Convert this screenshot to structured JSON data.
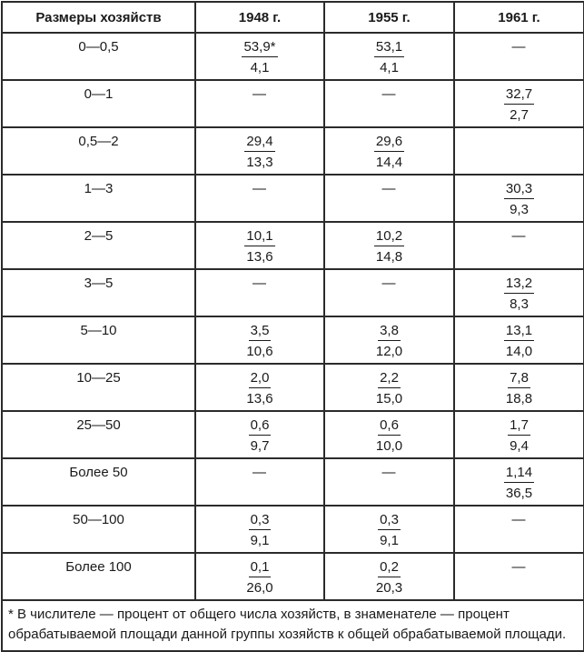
{
  "table": {
    "headers": [
      "Размеры хозяйств",
      "1948 г.",
      "1955 г.",
      "1961 г."
    ],
    "rows": [
      {
        "label": "0—0,5",
        "cells": [
          {
            "num": "53,9*",
            "den": "4,1"
          },
          {
            "num": "53,1",
            "den": "4,1"
          },
          {
            "dash": "—"
          }
        ]
      },
      {
        "label": "0—1",
        "cells": [
          {
            "dash": "—"
          },
          {
            "dash": "—"
          },
          {
            "num": "32,7",
            "den": "2,7"
          }
        ]
      },
      {
        "label": "0,5—2",
        "cells": [
          {
            "num": "29,4",
            "den": "13,3"
          },
          {
            "num": "29,6",
            "den": "14,4"
          },
          {}
        ]
      },
      {
        "label": "1—3",
        "cells": [
          {
            "dash": "—"
          },
          {
            "dash": "—"
          },
          {
            "num": "30,3",
            "den": "9,3"
          }
        ]
      },
      {
        "label": "2—5",
        "cells": [
          {
            "num": "10,1",
            "den": "13,6"
          },
          {
            "num": "10,2",
            "den": "14,8"
          },
          {
            "dash": "—"
          }
        ]
      },
      {
        "label": "3—5",
        "cells": [
          {
            "dash": "—"
          },
          {
            "dash": "—"
          },
          {
            "num": "13,2",
            "den": "8,3"
          }
        ]
      },
      {
        "label": "5—10",
        "cells": [
          {
            "num": "3,5",
            "den": "10,6"
          },
          {
            "num": "3,8",
            "den": "12,0"
          },
          {
            "num": "13,1",
            "den": "14,0"
          }
        ]
      },
      {
        "label": "10—25",
        "cells": [
          {
            "num": "2,0",
            "den": "13,6"
          },
          {
            "num": "2,2",
            "den": "15,0"
          },
          {
            "num": "7,8",
            "den": "18,8"
          }
        ]
      },
      {
        "label": "25—50",
        "cells": [
          {
            "num": "0,6",
            "den": "9,7"
          },
          {
            "num": "0,6",
            "den": "10,0"
          },
          {
            "num": "1,7",
            "den": "9,4"
          }
        ]
      },
      {
        "label": "Более 50",
        "cells": [
          {
            "dash": "—"
          },
          {
            "dash": "—"
          },
          {
            "num": "1,14",
            "den": "36,5"
          }
        ]
      },
      {
        "label": "50—100",
        "cells": [
          {
            "num": "0,3",
            "den": "9,1"
          },
          {
            "num": "0,3",
            "den": "9,1"
          },
          {
            "dash": "—"
          }
        ]
      },
      {
        "label": "Более 100",
        "cells": [
          {
            "num": "0,1",
            "den": "26,0"
          },
          {
            "num": "0,2",
            "den": "20,3"
          },
          {
            "dash": "—"
          }
        ]
      }
    ],
    "footnote": "* В числителе — процент от общего числа хозяйств, в знаменателе — процент обрабатываемой площади данной группы хозяйств к общей обрабатываемой площади.",
    "colors": {
      "text": "#1a1a1a",
      "border": "#2b2b2b",
      "background": "#ffffff"
    }
  },
  "chart_data": {
    "type": "table",
    "columns": [
      "Размеры хозяйств",
      "1948 г.",
      "1955 г.",
      "1961 г."
    ],
    "rows": [
      [
        "0—0,5",
        "53,9* / 4,1",
        "53,1 / 4,1",
        "—"
      ],
      [
        "0—1",
        "—",
        "—",
        "32,7 / 2,7"
      ],
      [
        "0,5—2",
        "29,4 / 13,3",
        "29,6 / 14,4",
        ""
      ],
      [
        "1—3",
        "—",
        "—",
        "30,3 / 9,3"
      ],
      [
        "2—5",
        "10,1 / 13,6",
        "10,2 / 14,8",
        "—"
      ],
      [
        "3—5",
        "—",
        "—",
        "13,2 / 8,3"
      ],
      [
        "5—10",
        "3,5 / 10,6",
        "3,8 / 12,0",
        "13,1 / 14,0"
      ],
      [
        "10—25",
        "2,0 / 13,6",
        "2,2 / 15,0",
        "7,8 / 18,8"
      ],
      [
        "25—50",
        "0,6 / 9,7",
        "0,6 / 10,0",
        "1,7 / 9,4"
      ],
      [
        "Более 50",
        "—",
        "—",
        "1,14 / 36,5"
      ],
      [
        "50—100",
        "0,3 / 9,1",
        "0,3 / 9,1",
        "—"
      ],
      [
        "Более 100",
        "0,1 / 26,0",
        "0,2 / 20,3",
        "—"
      ]
    ]
  }
}
